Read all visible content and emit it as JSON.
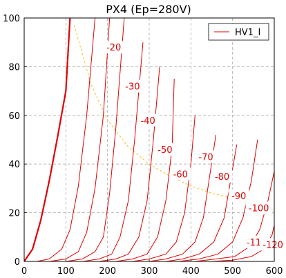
{
  "chart_data": {
    "type": "line",
    "title": "PX4 (Ep=280V)",
    "xlim": [
      0,
      600
    ],
    "ylim": [
      0,
      100
    ],
    "x_ticks": [
      0,
      100,
      200,
      300,
      400,
      500,
      600
    ],
    "y_ticks": [
      0,
      20,
      40,
      60,
      80,
      100
    ],
    "grid": true,
    "grid_style": "dashed",
    "legend": {
      "placement": "top-right",
      "entries": [
        "HV1_I"
      ]
    },
    "colors": {
      "curves": "#e00000",
      "load_line": "#f5b800",
      "grid": "#aaaaaa",
      "text": "#000000"
    },
    "series": [
      {
        "name": "HV1_I",
        "grid_voltage": 0,
        "bold": true,
        "x": [
          0,
          20,
          40,
          60,
          80,
          100,
          110
        ],
        "y": [
          0,
          5,
          17,
          33,
          51,
          70,
          100
        ]
      },
      {
        "grid_voltage": -10,
        "x": [
          30,
          60,
          90,
          110,
          130,
          150,
          170
        ],
        "y": [
          0,
          1,
          5,
          13,
          31,
          60,
          100
        ]
      },
      {
        "grid_voltage": -20,
        "x": [
          60,
          100,
          130,
          150,
          170,
          190,
          205
        ],
        "y": [
          0,
          1,
          4,
          12,
          30,
          60,
          100
        ]
      },
      {
        "grid_voltage": -30,
        "x": [
          100,
          140,
          170,
          190,
          205,
          220,
          240
        ],
        "y": [
          0,
          1,
          4,
          10,
          28,
          55,
          100
        ]
      },
      {
        "grid_voltage": -40,
        "x": [
          140,
          180,
          210,
          230,
          250,
          265,
          285
        ],
        "y": [
          0,
          1,
          3,
          10,
          25,
          50,
          90
        ]
      },
      {
        "grid_voltage": -50,
        "x": [
          180,
          220,
          250,
          275,
          295,
          310,
          325
        ],
        "y": [
          0,
          1,
          3,
          10,
          25,
          50,
          80
        ]
      },
      {
        "grid_voltage": -60,
        "x": [
          220,
          260,
          295,
          320,
          340,
          355,
          360
        ],
        "y": [
          0,
          1,
          3,
          10,
          25,
          47,
          75
        ]
      },
      {
        "grid_voltage": -70,
        "x": [
          260,
          300,
          340,
          365,
          385,
          400,
          410
        ],
        "y": [
          0,
          1,
          3,
          8,
          20,
          40,
          60
        ]
      },
      {
        "grid_voltage": -80,
        "x": [
          300,
          340,
          380,
          410,
          430,
          445,
          460
        ],
        "y": [
          0,
          1,
          3,
          8,
          18,
          35,
          52
        ]
      },
      {
        "grid_voltage": -90,
        "x": [
          340,
          380,
          420,
          455,
          480,
          495,
          510
        ],
        "y": [
          0,
          1,
          3,
          8,
          18,
          33,
          48
        ]
      },
      {
        "grid_voltage": -100,
        "x": [
          370,
          420,
          465,
          500,
          525,
          545,
          560
        ],
        "y": [
          0,
          1,
          3,
          8,
          18,
          33,
          50
        ]
      },
      {
        "grid_voltage": -110,
        "x": [
          410,
          460,
          505,
          540,
          565,
          585,
          600
        ],
        "y": [
          0,
          1,
          2,
          6,
          13,
          25,
          37
        ]
      },
      {
        "grid_voltage": -120,
        "x": [
          450,
          500,
          545,
          575,
          595,
          600
        ],
        "y": [
          0,
          0.5,
          2,
          5,
          11,
          15
        ]
      }
    ],
    "load_line": {
      "x": [
        120,
        160,
        200,
        250,
        300,
        350,
        400,
        450,
        500,
        550,
        600
      ],
      "y": [
        97,
        73,
        58,
        47,
        40,
        35,
        31,
        28,
        26,
        23,
        21
      ]
    },
    "annotations": [
      {
        "text": "-20",
        "x": 215,
        "y": 88
      },
      {
        "text": "-30",
        "x": 260,
        "y": 72
      },
      {
        "text": "-40",
        "x": 297,
        "y": 58
      },
      {
        "text": "-50",
        "x": 338,
        "y": 46
      },
      {
        "text": "-60",
        "x": 375,
        "y": 36
      },
      {
        "text": "-70",
        "x": 436,
        "y": 43
      },
      {
        "text": "-80",
        "x": 475,
        "y": 35
      },
      {
        "text": "-90",
        "x": 515,
        "y": 27
      },
      {
        "text": "-100",
        "x": 563,
        "y": 22
      },
      {
        "text": "-110",
        "x": 558,
        "y": 8
      },
      {
        "text": "-120",
        "x": 597,
        "y": 7
      }
    ]
  }
}
